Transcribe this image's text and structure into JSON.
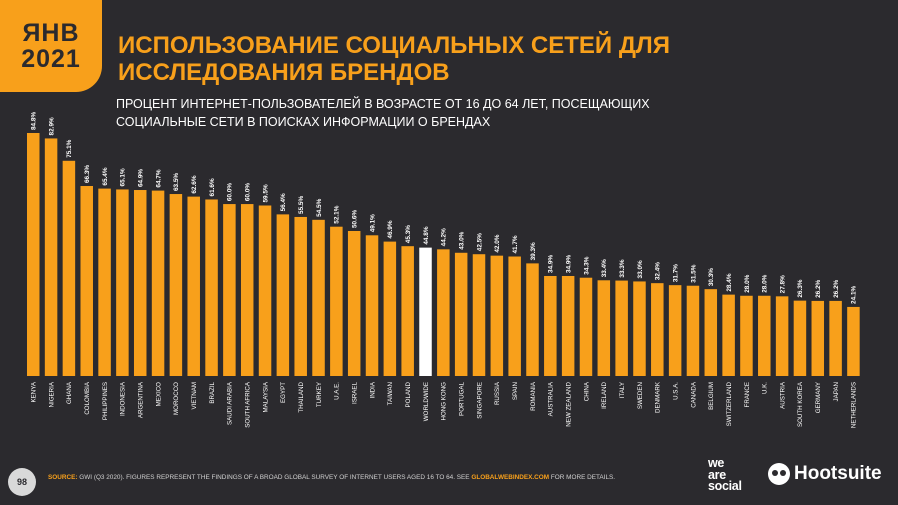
{
  "badge": {
    "month": "ЯНВ",
    "year": "2021"
  },
  "title": "ИСПОЛЬЗОВАНИЕ СОЦИАЛЬНЫХ СЕТЕЙ ДЛЯ ИССЛЕДОВАНИЯ БРЕНДОВ",
  "subtitle": "ПРОЦЕНТ ИНТЕРНЕТ-ПОЛЬЗОВАТЕЛЕЙ В ВОЗРАСТЕ ОТ 16 ДО 64 ЛЕТ, ПОСЕЩАЮЩИХ СОЦИАЛЬНЫЕ СЕТИ В ПОИСКАХ ИНФОРМАЦИИ О БРЕНДАХ",
  "footer": {
    "page_number": "98",
    "source_label": "SOURCE:",
    "source_text": "GWI (Q3 2020). FIGURES REPRESENT THE FINDINGS OF A BROAD GLOBAL SURVEY OF INTERNET USERS AGED 16 TO 64. SEE",
    "source_link": "GLOBALWEBINDEX.COM",
    "source_tail": "FOR MORE DETAILS.",
    "brand_1": [
      "we",
      "are",
      "social"
    ],
    "brand_2": "Hootsuite"
  },
  "colors": {
    "bar": "#f8a01b",
    "highlight": "#ffffff",
    "background": "#2b2a2e"
  },
  "chart_data": {
    "type": "bar",
    "categories": [
      "KENYA",
      "NIGERIA",
      "GHANA",
      "COLOMBIA",
      "PHILIPPINES",
      "INDONESIA",
      "ARGENTINA",
      "MEXICO",
      "MOROCCO",
      "VIETNAM",
      "BRAZIL",
      "SAUDI ARABIA",
      "SOUTH AFRICA",
      "MALAYSIA",
      "EGYPT",
      "THAILAND",
      "TURKEY",
      "U.A.E.",
      "ISRAEL",
      "INDIA",
      "TAIWAN",
      "POLAND",
      "WORLDWIDE",
      "HONG KONG",
      "PORTUGAL",
      "SINGAPORE",
      "RUSSIA",
      "SPAIN",
      "ROMANIA",
      "AUSTRALIA",
      "NEW ZEALAND",
      "CHINA",
      "IRELAND",
      "ITALY",
      "SWEDEN",
      "DENMARK",
      "U.S.A.",
      "CANADA",
      "BELGIUM",
      "SWITZERLAND",
      "FRANCE",
      "U.K.",
      "AUSTRIA",
      "SOUTH KOREA",
      "GERMANY",
      "JAPAN",
      "NETHERLANDS"
    ],
    "values": [
      84.8,
      82.9,
      75.1,
      66.3,
      65.4,
      65.1,
      64.9,
      64.7,
      63.5,
      62.6,
      61.6,
      60.0,
      60.0,
      59.5,
      56.4,
      55.5,
      54.5,
      52.1,
      50.6,
      49.1,
      46.9,
      45.3,
      44.8,
      44.2,
      43.0,
      42.5,
      42.0,
      41.7,
      39.3,
      34.9,
      34.9,
      34.3,
      33.4,
      33.3,
      33.0,
      32.4,
      31.7,
      31.5,
      30.3,
      28.4,
      28.0,
      28.0,
      27.8,
      26.3,
      26.2,
      26.2,
      24.1
    ],
    "value_labels": [
      "84.8%",
      "82.9%",
      "75.1%",
      "66.3%",
      "65.4%",
      "65.1%",
      "64.9%",
      "64.7%",
      "63.5%",
      "62.6%",
      "61.6%",
      "60.0%",
      "60.0%",
      "59.5%",
      "56.4%",
      "55.5%",
      "54.5%",
      "52.1%",
      "50.6%",
      "49.1%",
      "46.9%",
      "45.3%",
      "44.8%",
      "44.2%",
      "43.0%",
      "42.5%",
      "42.0%",
      "41.7%",
      "39.3%",
      "34.9%",
      "34.9%",
      "34.3%",
      "33.4%",
      "33.3%",
      "33.0%",
      "32.4%",
      "31.7%",
      "31.5%",
      "30.3%",
      "28.4%",
      "28.0%",
      "28.0%",
      "27.8%",
      "26.3%",
      "26.2%",
      "26.2%",
      "24.1%"
    ],
    "highlight_category": "WORLDWIDE",
    "ylim": [
      0,
      90
    ],
    "grid": false,
    "legend": "none"
  }
}
